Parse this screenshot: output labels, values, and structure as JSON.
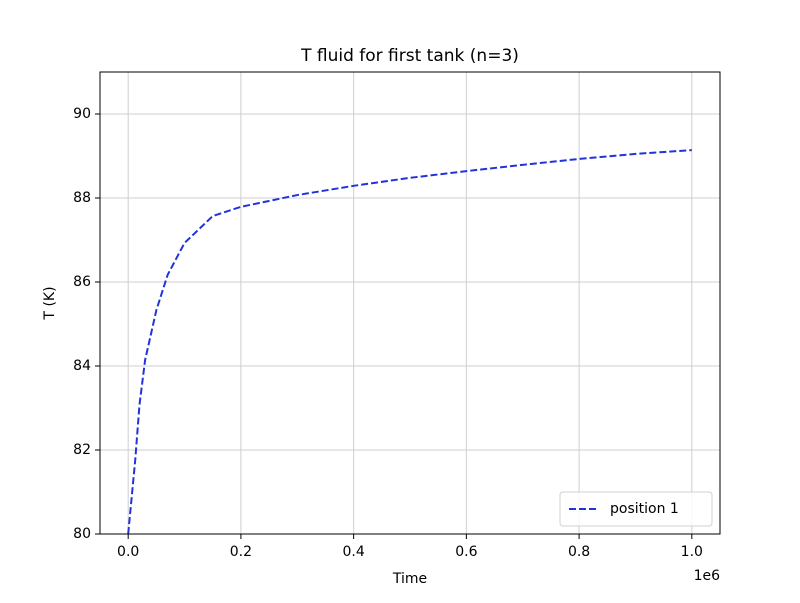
{
  "chart_data": {
    "type": "line",
    "title": "T fluid for first tank (n=3)",
    "x_label": "Time",
    "y_label": "T (K)",
    "x_offset_label": "1e6",
    "x": [
      0,
      0.0125,
      0.02,
      0.03,
      0.05,
      0.07,
      0.1,
      0.15,
      0.2,
      0.3,
      0.4,
      0.5,
      0.6,
      0.7,
      0.8,
      0.9,
      1.0
    ],
    "series": [
      {
        "name": "position 1",
        "color": "#2233dd",
        "dash": "dashed",
        "values": [
          80,
          81.76,
          83.07,
          84.14,
          85.33,
          86.17,
          86.93,
          87.57,
          87.79,
          88.07,
          88.29,
          88.48,
          88.64,
          88.79,
          88.93,
          89.05,
          89.14
        ]
      }
    ],
    "xlim": [
      -0.05,
      1.05
    ],
    "xticks": [
      {
        "value": 0,
        "label": "0.0"
      },
      0.2,
      0.4,
      0.6,
      0.8,
      {
        "value": 1,
        "label": "1.0"
      }
    ],
    "ylim": [
      80,
      91
    ],
    "yticks": [
      80,
      82,
      84,
      86,
      88,
      90
    ],
    "grid": true,
    "legend_position": "lower right"
  }
}
